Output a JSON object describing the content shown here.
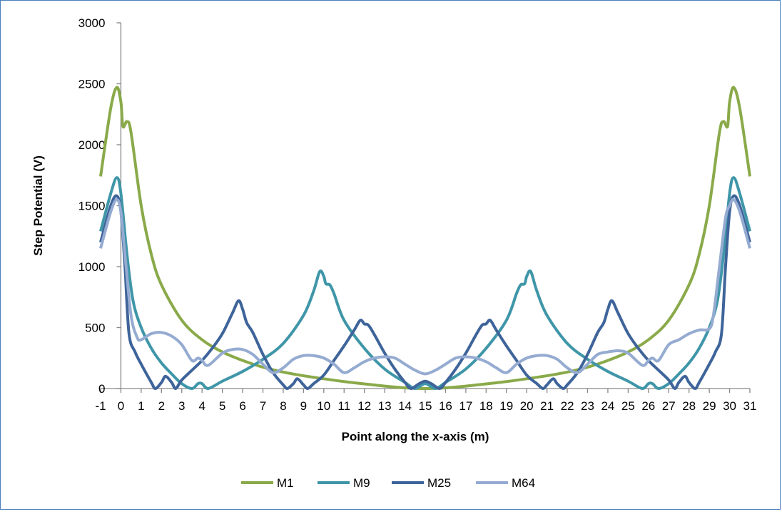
{
  "chart_data": {
    "type": "line",
    "title": "",
    "xlabel": "Point along the x-axis (m)",
    "ylabel": "Step Potential (V)",
    "xlim": [
      -1,
      31
    ],
    "ylim": [
      0,
      3000
    ],
    "x_ticks": [
      "-1",
      "0",
      "1",
      "2",
      "3",
      "4",
      "5",
      "6",
      "7",
      "8",
      "9",
      "10",
      "11",
      "12",
      "13",
      "14",
      "15",
      "16",
      "17",
      "18",
      "19",
      "20",
      "21",
      "22",
      "23",
      "24",
      "25",
      "26",
      "27",
      "28",
      "29",
      "30",
      "31"
    ],
    "y_ticks": [
      "0",
      "500",
      "1000",
      "1500",
      "2000",
      "2500",
      "3000"
    ],
    "legend_position": "bottom",
    "series": [
      {
        "name": "M1",
        "color": "#8aaa4a",
        "points": [
          [
            -1,
            1740
          ],
          [
            -0.5,
            2300
          ],
          [
            -0.2,
            2470
          ],
          [
            0,
            2350
          ],
          [
            0.1,
            2150
          ],
          [
            0.3,
            2190
          ],
          [
            0.5,
            2100
          ],
          [
            1,
            1500
          ],
          [
            1.5,
            1100
          ],
          [
            2,
            850
          ],
          [
            3,
            560
          ],
          [
            4,
            400
          ],
          [
            5,
            300
          ],
          [
            6,
            230
          ],
          [
            7,
            175
          ],
          [
            8,
            135
          ],
          [
            9,
            105
          ],
          [
            10,
            80
          ],
          [
            11,
            57
          ],
          [
            12,
            38
          ],
          [
            13,
            20
          ],
          [
            14,
            6
          ],
          [
            15,
            0
          ],
          [
            16,
            6
          ],
          [
            17,
            20
          ],
          [
            18,
            38
          ],
          [
            19,
            57
          ],
          [
            20,
            80
          ],
          [
            21,
            105
          ],
          [
            22,
            135
          ],
          [
            23,
            175
          ],
          [
            24,
            230
          ],
          [
            25,
            300
          ],
          [
            26,
            400
          ],
          [
            27,
            560
          ],
          [
            28,
            850
          ],
          [
            28.5,
            1100
          ],
          [
            29,
            1500
          ],
          [
            29.5,
            2100
          ],
          [
            29.7,
            2190
          ],
          [
            29.9,
            2150
          ],
          [
            30,
            2350
          ],
          [
            30.2,
            2470
          ],
          [
            30.5,
            2300
          ],
          [
            31,
            1740
          ]
        ]
      },
      {
        "name": "M9",
        "color": "#3f96a8",
        "points": [
          [
            -1,
            1290
          ],
          [
            -0.5,
            1600
          ],
          [
            -0.2,
            1730
          ],
          [
            0,
            1600
          ],
          [
            0.3,
            1100
          ],
          [
            0.6,
            720
          ],
          [
            1,
            500
          ],
          [
            1.5,
            330
          ],
          [
            2,
            210
          ],
          [
            2.5,
            120
          ],
          [
            3,
            40
          ],
          [
            3.5,
            0
          ],
          [
            3.8,
            40
          ],
          [
            4,
            40
          ],
          [
            4.3,
            0
          ],
          [
            5,
            60
          ],
          [
            6,
            140
          ],
          [
            7,
            240
          ],
          [
            8,
            370
          ],
          [
            9,
            600
          ],
          [
            9.5,
            800
          ],
          [
            9.8,
            960
          ],
          [
            10,
            920
          ],
          [
            10.1,
            860
          ],
          [
            10.3,
            850
          ],
          [
            10.5,
            780
          ],
          [
            11,
            560
          ],
          [
            12,
            330
          ],
          [
            13,
            160
          ],
          [
            14,
            50
          ],
          [
            14.5,
            0
          ],
          [
            15,
            40
          ],
          [
            15.5,
            0
          ],
          [
            16,
            50
          ],
          [
            17,
            160
          ],
          [
            18,
            330
          ],
          [
            19,
            560
          ],
          [
            19.5,
            780
          ],
          [
            19.7,
            850
          ],
          [
            19.9,
            860
          ],
          [
            20,
            920
          ],
          [
            20.2,
            960
          ],
          [
            20.5,
            800
          ],
          [
            21,
            600
          ],
          [
            22,
            370
          ],
          [
            23,
            240
          ],
          [
            24,
            140
          ],
          [
            25,
            60
          ],
          [
            25.7,
            0
          ],
          [
            26,
            40
          ],
          [
            26.2,
            40
          ],
          [
            26.5,
            0
          ],
          [
            27,
            40
          ],
          [
            27.5,
            120
          ],
          [
            28,
            210
          ],
          [
            28.5,
            330
          ],
          [
            29,
            500
          ],
          [
            29.4,
            720
          ],
          [
            29.7,
            1100
          ],
          [
            30,
            1600
          ],
          [
            30.2,
            1730
          ],
          [
            30.5,
            1600
          ],
          [
            31,
            1290
          ]
        ]
      },
      {
        "name": "M25",
        "color": "#3e649a",
        "points": [
          [
            -1,
            1200
          ],
          [
            -0.5,
            1500
          ],
          [
            -0.2,
            1580
          ],
          [
            0,
            1450
          ],
          [
            0.2,
            1000
          ],
          [
            0.4,
            450
          ],
          [
            0.7,
            300
          ],
          [
            1,
            200
          ],
          [
            1.5,
            50
          ],
          [
            1.7,
            0
          ],
          [
            2,
            50
          ],
          [
            2.2,
            100
          ],
          [
            2.5,
            50
          ],
          [
            2.7,
            0
          ],
          [
            3,
            70
          ],
          [
            3.5,
            150
          ],
          [
            4,
            230
          ],
          [
            4.5,
            330
          ],
          [
            5,
            450
          ],
          [
            5.5,
            620
          ],
          [
            5.8,
            720
          ],
          [
            6,
            650
          ],
          [
            6.2,
            540
          ],
          [
            6.5,
            460
          ],
          [
            7,
            280
          ],
          [
            7.5,
            130
          ],
          [
            8,
            30
          ],
          [
            8.2,
            0
          ],
          [
            8.5,
            40
          ],
          [
            8.7,
            80
          ],
          [
            9,
            30
          ],
          [
            9.2,
            0
          ],
          [
            9.5,
            40
          ],
          [
            10,
            110
          ],
          [
            10.5,
            230
          ],
          [
            11,
            350
          ],
          [
            11.5,
            480
          ],
          [
            11.8,
            560
          ],
          [
            12,
            530
          ],
          [
            12.2,
            520
          ],
          [
            12.5,
            440
          ],
          [
            13,
            290
          ],
          [
            13.5,
            160
          ],
          [
            14,
            50
          ],
          [
            14.3,
            0
          ],
          [
            14.7,
            40
          ],
          [
            15,
            60
          ],
          [
            15.3,
            40
          ],
          [
            15.7,
            0
          ],
          [
            16,
            50
          ],
          [
            16.5,
            160
          ],
          [
            17,
            290
          ],
          [
            17.5,
            440
          ],
          [
            17.8,
            520
          ],
          [
            18,
            530
          ],
          [
            18.2,
            560
          ],
          [
            18.5,
            480
          ],
          [
            19,
            350
          ],
          [
            19.5,
            230
          ],
          [
            20,
            110
          ],
          [
            20.5,
            40
          ],
          [
            20.8,
            0
          ],
          [
            21,
            30
          ],
          [
            21.3,
            80
          ],
          [
            21.5,
            40
          ],
          [
            21.8,
            0
          ],
          [
            22,
            30
          ],
          [
            22.5,
            130
          ],
          [
            23,
            280
          ],
          [
            23.5,
            460
          ],
          [
            23.8,
            540
          ],
          [
            24,
            650
          ],
          [
            24.2,
            720
          ],
          [
            24.5,
            620
          ],
          [
            25,
            450
          ],
          [
            25.5,
            330
          ],
          [
            26,
            230
          ],
          [
            26.5,
            150
          ],
          [
            27,
            70
          ],
          [
            27.3,
            0
          ],
          [
            27.5,
            50
          ],
          [
            27.8,
            100
          ],
          [
            28,
            50
          ],
          [
            28.3,
            0
          ],
          [
            28.5,
            50
          ],
          [
            29,
            200
          ],
          [
            29.3,
            300
          ],
          [
            29.6,
            450
          ],
          [
            29.8,
            1000
          ],
          [
            30,
            1450
          ],
          [
            30.2,
            1580
          ],
          [
            30.5,
            1500
          ],
          [
            31,
            1200
          ]
        ]
      },
      {
        "name": "M64",
        "color": "#95abd1",
        "points": [
          [
            -1,
            1150
          ],
          [
            -0.5,
            1450
          ],
          [
            -0.2,
            1550
          ],
          [
            0,
            1450
          ],
          [
            0.2,
            1100
          ],
          [
            0.5,
            600
          ],
          [
            0.8,
            420
          ],
          [
            1,
            400
          ],
          [
            1.5,
            450
          ],
          [
            2,
            460
          ],
          [
            2.5,
            430
          ],
          [
            3,
            360
          ],
          [
            3.5,
            230
          ],
          [
            3.8,
            250
          ],
          [
            4,
            230
          ],
          [
            4.3,
            190
          ],
          [
            5,
            290
          ],
          [
            5.5,
            320
          ],
          [
            6,
            320
          ],
          [
            6.5,
            280
          ],
          [
            7,
            200
          ],
          [
            7.5,
            130
          ],
          [
            8,
            170
          ],
          [
            8.5,
            240
          ],
          [
            9,
            270
          ],
          [
            9.5,
            270
          ],
          [
            10,
            250
          ],
          [
            10.5,
            200
          ],
          [
            11,
            130
          ],
          [
            11.5,
            170
          ],
          [
            12,
            220
          ],
          [
            12.5,
            250
          ],
          [
            13,
            260
          ],
          [
            13.5,
            250
          ],
          [
            14,
            200
          ],
          [
            14.5,
            150
          ],
          [
            15,
            120
          ],
          [
            15.5,
            150
          ],
          [
            16,
            200
          ],
          [
            16.5,
            250
          ],
          [
            17,
            260
          ],
          [
            17.5,
            250
          ],
          [
            18,
            220
          ],
          [
            18.5,
            170
          ],
          [
            19,
            130
          ],
          [
            19.5,
            200
          ],
          [
            20,
            250
          ],
          [
            20.5,
            270
          ],
          [
            21,
            270
          ],
          [
            21.5,
            240
          ],
          [
            22,
            170
          ],
          [
            22.5,
            130
          ],
          [
            23,
            200
          ],
          [
            23.5,
            280
          ],
          [
            24,
            300
          ],
          [
            24.5,
            310
          ],
          [
            25,
            290
          ],
          [
            25.7,
            190
          ],
          [
            26,
            230
          ],
          [
            26.2,
            250
          ],
          [
            26.5,
            230
          ],
          [
            27,
            360
          ],
          [
            27.5,
            400
          ],
          [
            28,
            450
          ],
          [
            28.5,
            480
          ],
          [
            29,
            490
          ],
          [
            29.2,
            600
          ],
          [
            29.5,
            1000
          ],
          [
            29.8,
            1400
          ],
          [
            30,
            1500
          ],
          [
            30.2,
            1550
          ],
          [
            30.5,
            1450
          ],
          [
            31,
            1150
          ]
        ]
      }
    ]
  }
}
